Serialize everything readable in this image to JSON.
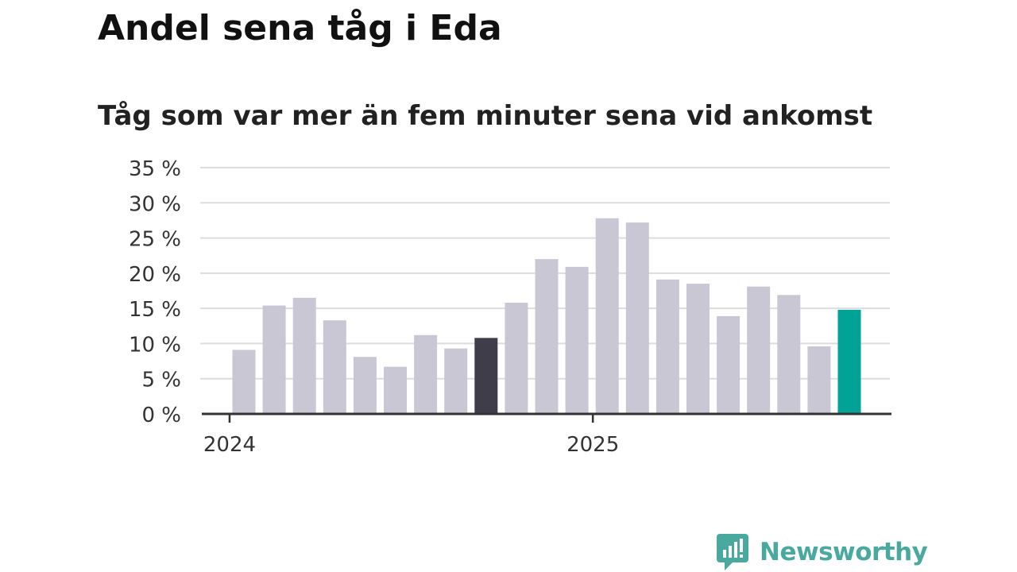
{
  "title": "Andel sena tåg i Eda",
  "subtitle": "Tåg som var mer än fem minuter sena vid ankomst",
  "brand": "Newsworthy",
  "colors": {
    "bar": "#c9c7d3",
    "highlight_dark": "#3f3d4a",
    "highlight_latest": "#00a396",
    "grid": "#dddddd",
    "axis": "#333333",
    "brand": "#4aa99f"
  },
  "chart_data": {
    "type": "bar",
    "values": [
      9.1,
      15.4,
      16.5,
      13.3,
      8.1,
      6.7,
      11.2,
      9.3,
      10.8,
      15.8,
      22.0,
      20.9,
      27.8,
      27.2,
      19.1,
      18.5,
      13.9,
      18.1,
      16.9,
      9.6,
      14.8
    ],
    "highlight": {
      "8": "highlight_dark",
      "20": "highlight_latest"
    },
    "ylim": [
      0,
      35
    ],
    "yticks": [
      0,
      5,
      10,
      15,
      20,
      25,
      30,
      35
    ],
    "ytick_suffix": " %",
    "xticks": [
      {
        "label": "2024",
        "index": -0.5
      },
      {
        "label": "2025",
        "index": 11.5
      }
    ],
    "grid": true,
    "legend": "none"
  }
}
